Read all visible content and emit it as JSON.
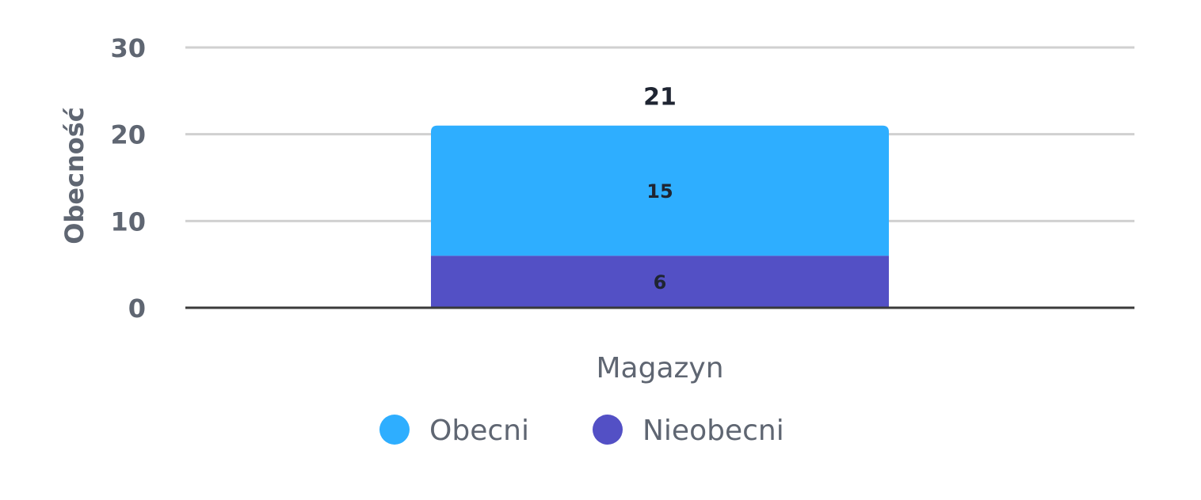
{
  "chart_data": {
    "type": "bar",
    "stacked": true,
    "categories": [
      "Magazyn"
    ],
    "series": [
      {
        "name": "Nieobecni",
        "values": [
          6
        ],
        "color": "#5350c5"
      },
      {
        "name": "Obecni",
        "values": [
          15
        ],
        "color": "#2eaeff"
      }
    ],
    "totals": [
      21
    ],
    "ylabel": "Obecność",
    "xlabel": "",
    "ylim": [
      0,
      30
    ],
    "yticks": [
      0,
      10,
      20,
      30
    ],
    "grid": true,
    "legend": {
      "placement": "bottom",
      "order": [
        "Obecni",
        "Nieobecni"
      ]
    },
    "colors": {
      "grid": "#d0d0d0",
      "axis": "#3a3a3a",
      "text": "#5f6672",
      "label": "#1f2532"
    }
  }
}
